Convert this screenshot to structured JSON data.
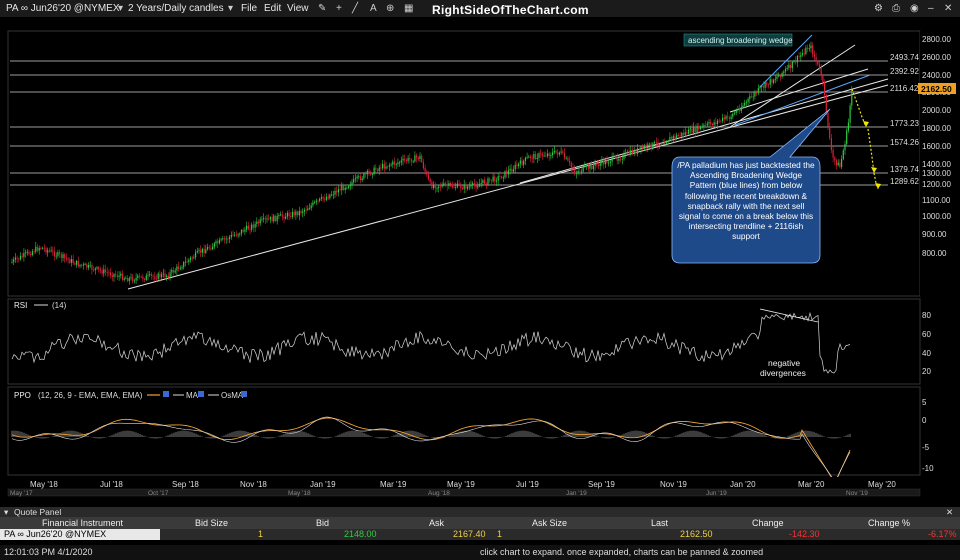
{
  "toolbar": {
    "symbol": "PA ∞ Jun26'20 @NYMEX",
    "timeframe": "2 Years/Daily candles",
    "menu_file": "File",
    "menu_edit": "Edit",
    "menu_view": "View",
    "brand": "RightSideOfTheChart.com"
  },
  "chart": {
    "wedge_label": "ascending broadening wedge",
    "last_price": "2162.50",
    "price_levels": [
      "2493.74",
      "2392.92",
      "2116.42",
      "1773.23",
      "1574.26",
      "1379.74",
      "1289.62"
    ],
    "price_axis": [
      "2800.00",
      "2600.00",
      "2400.00",
      "2200.00",
      "2000.00",
      "1800.00",
      "1600.00",
      "1400.00",
      "1300.00",
      "1200.00",
      "1100.00",
      "1000.00",
      "900.00",
      "800.00"
    ],
    "annotation": "/PA palladium has just backtested the Ascending Broadening Wedge Pattern (blue lines) from below following the recent breakdown & snapback rally with the next sell signal to come on a break below this intersecting trendline + 2116ish support",
    "rsi_label": "RSI",
    "rsi_params": "(14)",
    "rsi_axis": [
      "80",
      "60",
      "40",
      "20"
    ],
    "rsi_note_1": "negative",
    "rsi_note_2": "divergences",
    "ppo_label": "PPO",
    "ppo_params": "(12, 26, 9 - EMA, EMA, EMA)",
    "ppo_ma": "MA",
    "ppo_osma": "OsMA",
    "ppo_axis": [
      "5",
      "0",
      "-5",
      "-10"
    ],
    "x_axis": [
      "May '18",
      "Jul '18",
      "Sep '18",
      "Nov '18",
      "Jan '19",
      "Mar '19",
      "May '19",
      "Jul '19",
      "Sep '19",
      "Nov '19",
      "Jan '20",
      "Mar '20",
      "May '20"
    ],
    "x_axis_small": [
      "May '17",
      "Oct '17",
      "May '18",
      "Aug '18",
      "Jan '19",
      "Jun '19",
      "Nov '19"
    ]
  },
  "quote_panel": {
    "title": "Quote Panel",
    "col_instrument": "Financial Instrument",
    "col_bid_size": "Bid Size",
    "col_bid": "Bid",
    "col_ask": "Ask",
    "col_ask_size": "Ask Size",
    "col_last": "Last",
    "col_change": "Change",
    "col_change_pct": "Change %",
    "instrument": "PA ∞ Jun26'20 @NYMEX",
    "bid_size": "1",
    "bid": "2148.00",
    "ask": "2167.40",
    "ask_size": "1",
    "last": "2162.50",
    "change": "-142.30",
    "change_pct": "-6.17%"
  },
  "status_bar": {
    "timestamp": "12:01:03 PM 4/1/2020",
    "hint": "click chart to expand. once expanded, charts can be panned & zoomed"
  },
  "colors": {
    "up_candle": "#2ecc40",
    "down_candle": "#e0203a",
    "ppo_line": "#f0a030",
    "annotation_bg": "#1f4a8a",
    "change_red": "#ff3030"
  }
}
